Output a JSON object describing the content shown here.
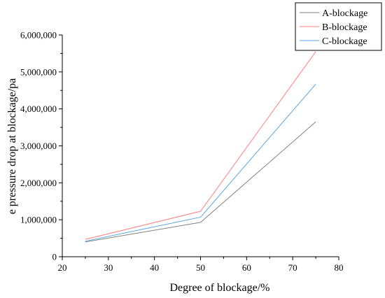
{
  "chart_data": {
    "type": "line",
    "xlabel": "Degree of blockage/%",
    "ylabel": "e pressure drop at blockage/pa",
    "x": [
      25,
      50,
      75
    ],
    "xlim": [
      20,
      80
    ],
    "ylim": [
      0,
      6000000
    ],
    "x_ticks": [
      20,
      30,
      40,
      50,
      60,
      70,
      80
    ],
    "x_tick_labels": [
      "20",
      "30",
      "40",
      "50",
      "60",
      "70",
      "80"
    ],
    "y_ticks": [
      0,
      1000000,
      2000000,
      3000000,
      4000000,
      5000000,
      6000000
    ],
    "y_tick_labels": [
      "0",
      "1,000,000",
      "2,000,000",
      "3,000,000",
      "4,000,000",
      "5,000,000",
      "6,000,000"
    ],
    "grid": false,
    "legend_position": "top-right",
    "series": [
      {
        "name": "A-blockage",
        "color": "#808080",
        "values": [
          400000,
          930000,
          3650000
        ]
      },
      {
        "name": "B-blockage",
        "color": "#ff8080",
        "values": [
          470000,
          1230000,
          5550000
        ]
      },
      {
        "name": "C-blockage",
        "color": "#5aa5e6",
        "values": [
          420000,
          1070000,
          4670000
        ]
      }
    ]
  }
}
